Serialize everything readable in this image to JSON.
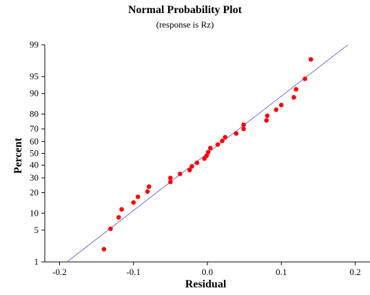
{
  "chart_data": {
    "type": "scatter",
    "title": "Normal Probability Plot",
    "subtitle": "(response is Rz)",
    "xlabel": "Residual",
    "ylabel": "Percent",
    "xlim": [
      -0.22,
      0.22
    ],
    "x_ticks": [
      -0.2,
      -0.1,
      0.0,
      0.1,
      0.2
    ],
    "x_tick_labels": [
      "-0.2",
      "-0.1",
      "0.0",
      "0.1",
      "0.2"
    ],
    "y_scale": "normal-probability",
    "ylim": [
      1,
      99
    ],
    "y_ticks": [
      1,
      5,
      10,
      20,
      30,
      40,
      50,
      60,
      70,
      80,
      90,
      95,
      99
    ],
    "y_tick_labels": [
      "1",
      "5",
      "10",
      "20",
      "30",
      "40",
      "50",
      "60",
      "70",
      "80",
      "90",
      "95",
      "99"
    ],
    "fit_line": {
      "x": [
        -0.19,
        0.19
      ],
      "y": [
        1,
        99
      ],
      "color": "#6b6bdc"
    },
    "point_color": "#ff0000",
    "points": [
      {
        "x": -0.14,
        "y": 2
      },
      {
        "x": -0.131,
        "y": 5.3
      },
      {
        "x": -0.12,
        "y": 8.5
      },
      {
        "x": -0.116,
        "y": 11.5
      },
      {
        "x": -0.1,
        "y": 14.6
      },
      {
        "x": -0.094,
        "y": 17.6
      },
      {
        "x": -0.081,
        "y": 20.7
      },
      {
        "x": -0.079,
        "y": 23.8
      },
      {
        "x": -0.05,
        "y": 27
      },
      {
        "x": -0.05,
        "y": 29.9
      },
      {
        "x": -0.037,
        "y": 33
      },
      {
        "x": -0.024,
        "y": 36
      },
      {
        "x": -0.021,
        "y": 39
      },
      {
        "x": -0.014,
        "y": 42
      },
      {
        "x": -0.004,
        "y": 45.5
      },
      {
        "x": -0.001,
        "y": 48
      },
      {
        "x": 0.001,
        "y": 51
      },
      {
        "x": 0.004,
        "y": 54.5
      },
      {
        "x": 0.014,
        "y": 57.5
      },
      {
        "x": 0.02,
        "y": 60.5
      },
      {
        "x": 0.024,
        "y": 63.5
      },
      {
        "x": 0.039,
        "y": 66.5
      },
      {
        "x": 0.049,
        "y": 70
      },
      {
        "x": 0.049,
        "y": 73
      },
      {
        "x": 0.08,
        "y": 76
      },
      {
        "x": 0.081,
        "y": 79
      },
      {
        "x": 0.093,
        "y": 82.5
      },
      {
        "x": 0.1,
        "y": 85
      },
      {
        "x": 0.117,
        "y": 88.5
      },
      {
        "x": 0.12,
        "y": 91.5
      },
      {
        "x": 0.132,
        "y": 94.5
      },
      {
        "x": 0.14,
        "y": 97.8
      }
    ]
  }
}
